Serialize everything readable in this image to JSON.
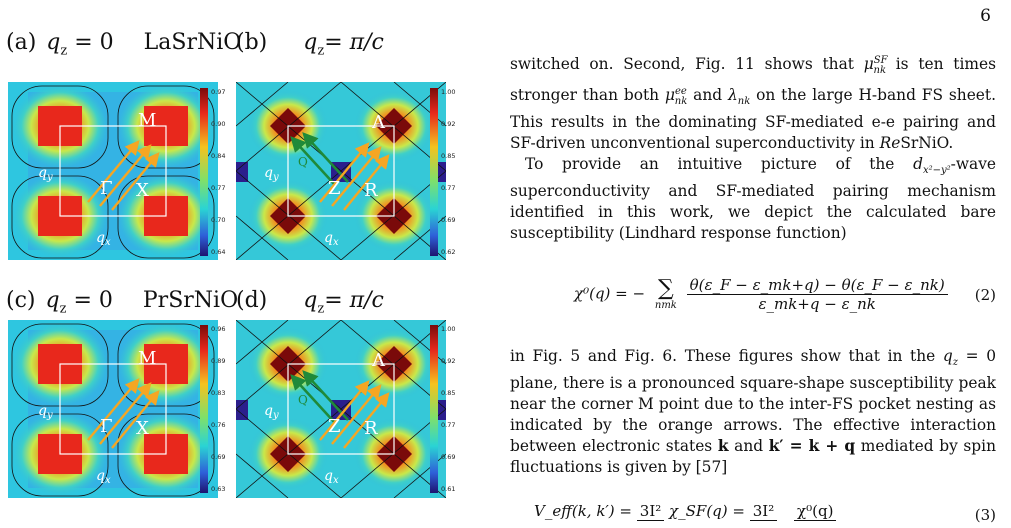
{
  "page_number": "6",
  "figure": {
    "panels": [
      {
        "letter": "(a)",
        "qz": "q",
        "qz_sub": "z",
        "qz_val": " = 0",
        "material": "LaSrNiO",
        "points": [
          "M",
          "Γ",
          "X"
        ],
        "qx": "q",
        "qx_sub": "x",
        "qy": "q",
        "qy_sub": "y",
        "cbar": [
          "0.97",
          "0.90",
          "0.84",
          "0.77",
          "0.70",
          "0.64"
        ]
      },
      {
        "letter": "(b)",
        "qz": "q",
        "qz_sub": "z",
        "qz_val": "= π/c",
        "material": "",
        "points": [
          "A",
          "Z",
          "R",
          "Q"
        ],
        "qx": "q",
        "qx_sub": "x",
        "qy": "q",
        "qy_sub": "y",
        "cbar": [
          "1.00",
          "0.92",
          "0.85",
          "0.77",
          "0.69",
          "0.62"
        ]
      },
      {
        "letter": "(c)",
        "qz": "q",
        "qz_sub": "z",
        "qz_val": " = 0",
        "material": "PrSrNiO",
        "points": [
          "M",
          "Γ",
          "X"
        ],
        "qx": "q",
        "qx_sub": "x",
        "qy": "q",
        "qy_sub": "y",
        "cbar": [
          "0.96",
          "0.89",
          "0.83",
          "0.76",
          "0.69",
          "0.63"
        ]
      },
      {
        "letter": "(d)",
        "qz": "q",
        "qz_sub": "z",
        "qz_val": "= π/c",
        "material": "",
        "points": [
          "A",
          "Z",
          "R",
          "Q"
        ],
        "qx": "q",
        "qx_sub": "x",
        "qy": "q",
        "qy_sub": "y",
        "cbar": [
          "1.00",
          "0.92",
          "0.85",
          "0.77",
          "0.69",
          "0.61"
        ]
      }
    ]
  },
  "text": {
    "p1_a": "switched on. Second, Fig. 11 shows that ",
    "p1_mu": "μ",
    "p1_mu_sup": "SF",
    "p1_mu_sub": "nk",
    "p1_b": " is ten times stronger than both ",
    "p1_mu2_sup": "ee",
    "p1_c": " and ",
    "p1_lambda": "λ",
    "p1_d": " on the large H-band FS sheet. This results in the dominating SF-mediated e-e pairing and SF-driven unconventional superconductivity in ",
    "p1_re": "Re",
    "p1_e": "SrNiO.",
    "p2_a": "To provide an intuitive picture of the ",
    "p2_d": "d",
    "p2_dsub": "x²−y²",
    "p2_b": "-wave superconductivity and SF-mediated pairing mechanism identified in this work, we depict the calculated bare susceptibility (Lindhard response function)",
    "p3_a": "in Fig. 5 and Fig. 6. These figures show that in the ",
    "p3_qz": "q",
    "p3_qz_sub": "z",
    "p3_qz_val": " = 0",
    "p3_b": " plane, there is a pronounced square-shape susceptibility peak near the corner M point due to the inter-FS pocket nesting as indicated by the orange arrows. The effective interaction between electronic states ",
    "p3_k": "k",
    "p3_c": " and ",
    "p3_kp": "k′ = k + q",
    "p3_d": " mediated by spin fluctuations is given by  [57]"
  },
  "equations": {
    "eq2_lhs": "χ⁰(q) = −",
    "eq2_sum": "∑",
    "eq2_sum_sub": "nmk",
    "eq2_num": "θ(ε_F − ε_mk+q) − θ(ε_F − ε_nk)",
    "eq2_den": "ε_mk+q − ε_nk",
    "eq2_number": "(2)",
    "eq3_lhs": "V_eff(k, k′) =",
    "eq3_frac1": "3I²",
    "eq3_mid": "χ_SF(q) =",
    "eq3_frac2": "3I²",
    "eq3_num2": "χ⁰(q)",
    "eq3_number": "(3)"
  },
  "colors": {
    "map_low": "#2b1e8c",
    "map_mid": "#2ad4d4",
    "map_high": "#d21a1a",
    "arrow_orange": "#f5a623",
    "arrow_green": "#1f8a3a"
  }
}
